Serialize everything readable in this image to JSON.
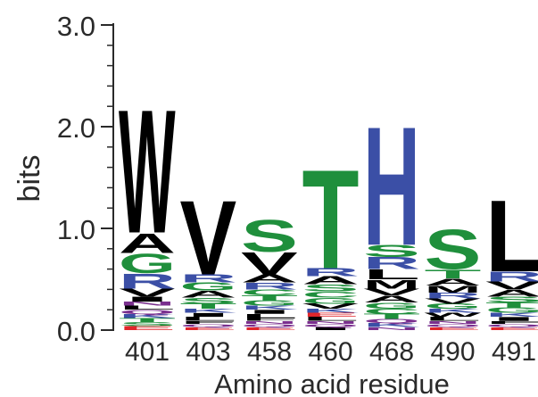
{
  "chart_data": {
    "type": "sequence-logo",
    "ylabel": "bits",
    "xlabel": "Amino acid residue",
    "ylim": [
      0,
      3.0
    ],
    "yticks": [
      "0.0",
      "1.0",
      "2.0",
      "3.0"
    ],
    "categories": [
      "401",
      "403",
      "458",
      "460",
      "468",
      "490",
      "491"
    ],
    "colors": {
      "hydrophobic": "#000000",
      "polar": "#1f8f3c",
      "basic": "#3b4fa6",
      "acidic": "#e0262b",
      "neutral": "#7a2f8e"
    },
    "positions": [
      {
        "residue": "401",
        "letters": [
          {
            "aa": "W",
            "bits": 1.25,
            "color": "hydrophobic"
          },
          {
            "aa": "G",
            "bits": 0.2,
            "color": "polar"
          },
          {
            "aa": "A",
            "bits": 0.2,
            "color": "hydrophobic"
          },
          {
            "aa": "R",
            "bits": 0.15,
            "color": "basic"
          },
          {
            "aa": "V",
            "bits": 0.08,
            "color": "hydrophobic"
          },
          {
            "aa": "I",
            "bits": 0.05,
            "color": "hydrophobic"
          },
          {
            "aa": "E",
            "bits": 0.04,
            "color": "acidic"
          },
          {
            "aa": "S",
            "bits": 0.04,
            "color": "polar"
          },
          {
            "aa": "T",
            "bits": 0.04,
            "color": "polar"
          },
          {
            "aa": "K",
            "bits": 0.04,
            "color": "basic"
          },
          {
            "aa": "Q",
            "bits": 0.04,
            "color": "neutral"
          },
          {
            "aa": "L",
            "bits": 0.04,
            "color": "hydrophobic"
          },
          {
            "aa": "N",
            "bits": 0.04,
            "color": "neutral"
          }
        ]
      },
      {
        "residue": "403",
        "letters": [
          {
            "aa": "V",
            "bits": 0.75,
            "color": "hydrophobic"
          },
          {
            "aa": "G",
            "bits": 0.08,
            "color": "polar"
          },
          {
            "aa": "R",
            "bits": 0.08,
            "color": "basic"
          },
          {
            "aa": "A",
            "bits": 0.07,
            "color": "hydrophobic"
          },
          {
            "aa": "S",
            "bits": 0.06,
            "color": "polar"
          },
          {
            "aa": "T",
            "bits": 0.05,
            "color": "polar"
          },
          {
            "aa": "L",
            "bits": 0.04,
            "color": "hydrophobic"
          },
          {
            "aa": "I",
            "bits": 0.04,
            "color": "hydrophobic"
          },
          {
            "aa": "K",
            "bits": 0.04,
            "color": "basic"
          },
          {
            "aa": "E",
            "bits": 0.03,
            "color": "acidic"
          },
          {
            "aa": "Q",
            "bits": 0.03,
            "color": "neutral"
          },
          {
            "aa": "F",
            "bits": 0.03,
            "color": "hydrophobic"
          }
        ]
      },
      {
        "residue": "458",
        "letters": [
          {
            "aa": "S",
            "bits": 0.32,
            "color": "polar"
          },
          {
            "aa": "V",
            "bits": 0.22,
            "color": "hydrophobic"
          },
          {
            "aa": "A",
            "bits": 0.08,
            "color": "hydrophobic"
          },
          {
            "aa": "R",
            "bits": 0.07,
            "color": "basic"
          },
          {
            "aa": "C",
            "bits": 0.06,
            "color": "polar"
          },
          {
            "aa": "G",
            "bits": 0.05,
            "color": "polar"
          },
          {
            "aa": "T",
            "bits": 0.05,
            "color": "polar"
          },
          {
            "aa": "L",
            "bits": 0.04,
            "color": "hydrophobic"
          },
          {
            "aa": "I",
            "bits": 0.04,
            "color": "hydrophobic"
          },
          {
            "aa": "K",
            "bits": 0.04,
            "color": "basic"
          },
          {
            "aa": "E",
            "bits": 0.03,
            "color": "acidic"
          },
          {
            "aa": "Q",
            "bits": 0.03,
            "color": "neutral"
          },
          {
            "aa": "N",
            "bits": 0.03,
            "color": "neutral"
          },
          {
            "aa": "F",
            "bits": 0.03,
            "color": "hydrophobic"
          }
        ]
      },
      {
        "residue": "460",
        "letters": [
          {
            "aa": "T",
            "bits": 1.0,
            "color": "polar"
          },
          {
            "aa": "A",
            "bits": 0.08,
            "color": "hydrophobic"
          },
          {
            "aa": "R",
            "bits": 0.08,
            "color": "basic"
          },
          {
            "aa": "S",
            "bits": 0.07,
            "color": "polar"
          },
          {
            "aa": "G",
            "bits": 0.06,
            "color": "polar"
          },
          {
            "aa": "C",
            "bits": 0.06,
            "color": "polar"
          },
          {
            "aa": "V",
            "bits": 0.05,
            "color": "hydrophobic"
          },
          {
            "aa": "L",
            "bits": 0.04,
            "color": "hydrophobic"
          },
          {
            "aa": "E",
            "bits": 0.04,
            "color": "acidic"
          },
          {
            "aa": "K",
            "bits": 0.04,
            "color": "basic"
          },
          {
            "aa": "I",
            "bits": 0.03,
            "color": "hydrophobic"
          },
          {
            "aa": "Q",
            "bits": 0.03,
            "color": "neutral"
          },
          {
            "aa": "N",
            "bits": 0.03,
            "color": "neutral"
          }
        ]
      },
      {
        "residue": "468",
        "letters": [
          {
            "aa": "H",
            "bits": 1.2,
            "color": "basic"
          },
          {
            "aa": "R",
            "bits": 0.12,
            "color": "basic"
          },
          {
            "aa": "S",
            "bits": 0.12,
            "color": "polar"
          },
          {
            "aa": "L",
            "bits": 0.1,
            "color": "hydrophobic"
          },
          {
            "aa": "M",
            "bits": 0.09,
            "color": "hydrophobic"
          },
          {
            "aa": "A",
            "bits": 0.07,
            "color": "hydrophobic"
          },
          {
            "aa": "V",
            "bits": 0.07,
            "color": "hydrophobic"
          },
          {
            "aa": "G",
            "bits": 0.06,
            "color": "polar"
          },
          {
            "aa": "T",
            "bits": 0.05,
            "color": "polar"
          },
          {
            "aa": "C",
            "bits": 0.05,
            "color": "polar"
          },
          {
            "aa": "K",
            "bits": 0.04,
            "color": "basic"
          },
          {
            "aa": "Q",
            "bits": 0.04,
            "color": "neutral"
          },
          {
            "aa": "N",
            "bits": 0.03,
            "color": "neutral"
          }
        ]
      },
      {
        "residue": "490",
        "letters": [
          {
            "aa": "S",
            "bits": 0.4,
            "color": "polar"
          },
          {
            "aa": "T",
            "bits": 0.09,
            "color": "polar"
          },
          {
            "aa": "M",
            "bits": 0.07,
            "color": "hydrophobic"
          },
          {
            "aa": "A",
            "bits": 0.07,
            "color": "hydrophobic"
          },
          {
            "aa": "R",
            "bits": 0.06,
            "color": "basic"
          },
          {
            "aa": "G",
            "bits": 0.05,
            "color": "polar"
          },
          {
            "aa": "V",
            "bits": 0.05,
            "color": "hydrophobic"
          },
          {
            "aa": "L",
            "bits": 0.04,
            "color": "hydrophobic"
          },
          {
            "aa": "W",
            "bits": 0.04,
            "color": "hydrophobic"
          },
          {
            "aa": "K",
            "bits": 0.04,
            "color": "basic"
          },
          {
            "aa": "E",
            "bits": 0.03,
            "color": "acidic"
          },
          {
            "aa": "Q",
            "bits": 0.03,
            "color": "neutral"
          },
          {
            "aa": "N",
            "bits": 0.03,
            "color": "neutral"
          }
        ]
      },
      {
        "residue": "491",
        "letters": [
          {
            "aa": "L",
            "bits": 0.72,
            "color": "hydrophobic"
          },
          {
            "aa": "R",
            "bits": 0.1,
            "color": "basic"
          },
          {
            "aa": "V",
            "bits": 0.08,
            "color": "hydrophobic"
          },
          {
            "aa": "A",
            "bits": 0.07,
            "color": "hydrophobic"
          },
          {
            "aa": "S",
            "bits": 0.06,
            "color": "polar"
          },
          {
            "aa": "G",
            "bits": 0.05,
            "color": "polar"
          },
          {
            "aa": "T",
            "bits": 0.05,
            "color": "polar"
          },
          {
            "aa": "I",
            "bits": 0.04,
            "color": "hydrophobic"
          },
          {
            "aa": "K",
            "bits": 0.04,
            "color": "basic"
          },
          {
            "aa": "E",
            "bits": 0.03,
            "color": "acidic"
          },
          {
            "aa": "Q",
            "bits": 0.03,
            "color": "neutral"
          },
          {
            "aa": "F",
            "bits": 0.03,
            "color": "hydrophobic"
          }
        ]
      }
    ]
  }
}
